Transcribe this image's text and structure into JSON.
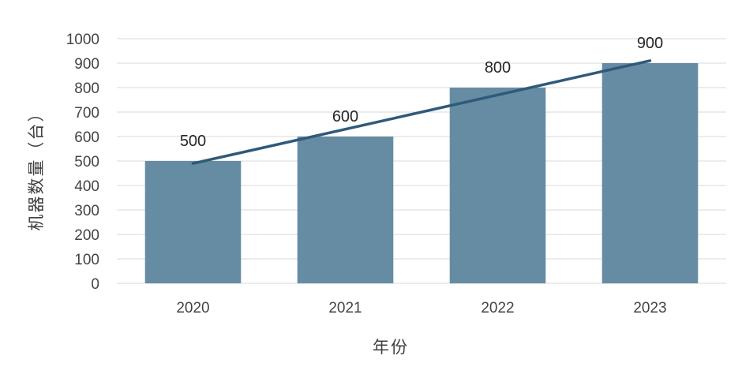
{
  "chart_data": {
    "type": "bar",
    "categories": [
      "2020",
      "2021",
      "2022",
      "2023"
    ],
    "values": [
      500,
      600,
      800,
      900
    ],
    "data_labels": [
      "500",
      "600",
      "800",
      "900"
    ],
    "trendline": {
      "type": "linear",
      "start": 490,
      "end": 910,
      "color": "#2f5a7a"
    },
    "xlabel": "年份",
    "ylabel": "机器数量（台）",
    "ylim": [
      0,
      1000
    ],
    "yticks": [
      0,
      100,
      200,
      300,
      400,
      500,
      600,
      700,
      800,
      900,
      1000
    ],
    "grid": true,
    "legend": "none",
    "colors": {
      "bar": "#668ca3",
      "trend": "#2f5a7a",
      "grid": "#d9d9d9"
    }
  }
}
